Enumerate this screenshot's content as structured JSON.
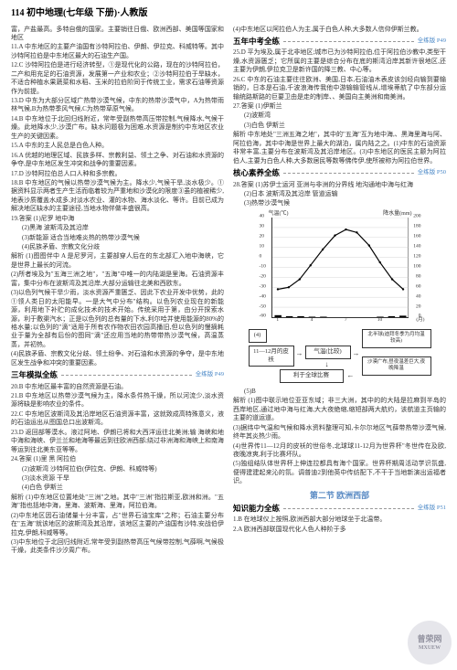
{
  "header": "114 初中地理(七年级 下册)·人教版",
  "left": {
    "p1": "富，产盐最高。多特自俄的国家。主要销往日俄、欧洲西部、美国等国家和地区",
    "i11": "11.A 中东地区的主要产油国有沙特阿拉伯、伊朗、伊拉克、科威特等。其中沙特阿拉伯是中东地区最大的石油生产国。",
    "i12": "12.C 沙特阿拉伯是进行经济转型，①是现代化的公路，现在的沙特阿拉伯，二产和用充足的石油资源，发展第一产业和农业；②沙特阿拉伯于旱缺水，不适合种植水果蔬菜和水稻、玉米的拉伯阶同于传统工业，需求石油等资源作为前提。",
    "i13": "13.D 中东为大部分区域广热带沙漠气候，中东的热带沙漠气中，A为热带雨林气候,B为热带季风气候,C为热带草原气候。",
    "i14": "14.B 中东地位于北回归线附近，常年受副热带高压带控制,气候降水,气候干燥。此地降水少,沙漠广布。缺水问题极为困难,水资源是制约中东地区农业生产的关键因素。",
    "i15": "15.A 中东的主人民总是白色人种。",
    "i16": "16.A 优越的地理区域、民族多样、宗教利益、领土之争、对石油和水资源的争夺,是中东地区发生冲突和战争的重要因素。",
    "i17": "17.D 沙特阿拉伯总人口人种和多宗教。",
    "i18": "18.B 中东地区的气候以热带沙漠气候为主。降水少,气候干旱,淡水极少。①据资料显示两者生产生活而临着较为严重地和沙漠化的限度③虽的植被稀少,地表沙质覆盖水成多,对淡水农业、灌的水物、海水淡化、等许。目前已成为解决地区缺水的主要途径,当地水物伴做丰盛很高。",
    "i19t": "19.答案 (1)尼罗 地中海",
    "i19a": "(2)黑海 波斯湾及其沿岸",
    "i19b": "(3)新能源 适合当地难炎热的热带沙漠气候",
    "i19c": "(4)民族矛盾、宗教文化分歧",
    "i19jx": "解析 (1)图图伴中 A 是尼罗河，主要部穿人后在的东北部汇入地中海峡，它是世界上最长的河流。",
    "i19d": "(2)所者埃及为\"五海三洲之地\"，\"五海\"中唯一的内陆湖是里海。石油资源丰富，集中分布在波斯湾及其沿岸,大部分运输往北美和西欧东。",
    "i19e": "(3)以色列气候干旱少雨，淡水资源严重匮乏、因此下农业开发中优势，此的 ①领人类日的太阳能早。一是大气中分布\"结构。以色列农业现在的新能源，利用地下补贮的成化技术的技术开始。传统采用于第，由分开探索水源，利于敷渠汽水；正是以色列的总有量的下水,利尔哈并使用能源的80%的格水量;以色列的\"滴\"适用于所有农作物农田农园高播旧,但以色列的慢摘耗业于量为全部有后份的图同\"滴\"还应用当地的热带带热沙漠气候，高温蒸蒸，并初热。",
    "i19f": "(4)民族矛盾、宗教文化分歧、领土纷争、对石油和水资源的争夺，是中东地区发生战争和冲突的重要因素。"
  },
  "san": {
    "title": "三年模拟全练",
    "ref": "全练版 P49",
    "i20": "20.B 中东地区最丰富的自然资源是石油。",
    "i21": "21.B 中东地区以热带沙漠气候为主，降水条件热干燥，所以河流少,淡水资源将缺是影响农业的条件。",
    "i22": "22.C 中东地区波斯湾及其沿岸地区石油资源丰富，这就致成高特殊意义，液的石油运出从图国总口出波斯湾。",
    "i23": "23.D 返回部等漠水。液过阿地、伊朗已将和大西洋运往北美洲;输 海峡和地中海和海峡、伊兰兰和地海等最远到往欧洲西部;绕过非洲海和海峡上和南海等运到往北美东亚等等。",
    "i24t": "24.答案 (1)里 黑 阿拉伯",
    "i24a": "(2)波斯湾 沙特阿拉伯(伊拉克、伊朗、科威特等)",
    "i24b": "(3)淡水资源 干旱",
    "i24c": "(4)白色 伊斯兰",
    "i24jx": "解析 (1)中东地区位置地处\"三洲\"之地。其中\"三洲\"指拉斯亚,欧洲和洲。\"五海\"指也括地中海，里海、波斯海、里海，阿拉伯海。",
    "i24d": "(2)中东地区因石油储量十分丰富，占\"世界石油宝库\"之称；石油主要分布在\"五海\"就该地区的波斯湾及其沿岸，该地区主要的产油国有沙特,安战伯伊拉克,伊朗,科威等等。",
    "i24e": "(3)中东地位于北回归线附近,常年受到副热带高压气候带控制,气薛啊,气候极干燥，此类条件沙汐周广布。"
  },
  "right_top": {
    "p1": "(4)中东地区以阿拉伯人为主,属于白色人种,大多数人信仰伊斯兰教。"
  },
  "wu": {
    "title": "五年中考全练",
    "ref": "全练版 P49",
    "i25": "25.D 平为埃及,属于北非地区;城市已为沙特阿拉伯,位于阿拉伯沙教中,类型干燥,水资源匮乏；它所属的主要是综合分布在底的斯湾沿岸其新许很地区,还主要为伊朗,伊拉克卫是新许国的降三教、中心等。",
    "i26": "26.C 中东的石油主要往往欧洲、美国,日本,石油油木表皮该剑经向输到要输销的，日本是石油,千波浪海传我他中游输输管线从,增埃蒂航了中东部分运输统路斯路的巨要卫由是走的制岸、、美国向主美洲和南美洲。",
    "i27t": "27.答案 (1)伊斯兰",
    "i27a": "(2)波斯湾",
    "i27b": "(3)白色 伊斯兰",
    "i27jx": "解析 中东地处\"三洲五海之地\"，其中的\"五海\"互为地中海,、黑海里海与阿、阿拉伯海，其中中海是世界上最大的湖泊，属内陆之之。(1)中东的石油资源非常丰富,主要分布在波斯湾及其沿岸地区。(3)中东地区的医民主颤为阿拉伯人,主要为白色人种,大多数居民等数等佛传伊,使所被称为阿拉伯世界。"
  },
  "hexin": {
    "title": "核心素养全练",
    "ref": "全练版 P50",
    "i28t": "28.答案 (1)苏伊士运河 亚洲与非洲的分界线 地沟通地中海与红海",
    "i28a": "(2)日本 波斯湾及其沿岸 管道运输",
    "i28b": "(3)热带沙漠气候"
  },
  "chart": {
    "ylabel_left": "气温(℃)",
    "ylabel_right": "降水量(mm)",
    "xlabel": "(月)",
    "y_left_ticks": [
      "40",
      "30",
      "20",
      "10",
      "0",
      "-10",
      "-20",
      "-30",
      "-40",
      "-50",
      "-60"
    ],
    "y_right_ticks": [
      "200",
      "180",
      "160",
      "140",
      "120",
      "100",
      "80",
      "60",
      "40",
      "20",
      "0"
    ],
    "x_ticks": [
      "1",
      "4",
      "7",
      "10"
    ],
    "line_points": [
      [
        0.04,
        0.72
      ],
      [
        0.12,
        0.7
      ],
      [
        0.2,
        0.62
      ],
      [
        0.28,
        0.48
      ],
      [
        0.37,
        0.32
      ],
      [
        0.46,
        0.18
      ],
      [
        0.54,
        0.12
      ],
      [
        0.62,
        0.15
      ],
      [
        0.71,
        0.28
      ],
      [
        0.79,
        0.45
      ],
      [
        0.88,
        0.62
      ],
      [
        0.96,
        0.72
      ]
    ],
    "bars": [
      0.02,
      0.01,
      0.01,
      0.005,
      0.005,
      0.0,
      0.0,
      0.0,
      0.0,
      0.005,
      0.01,
      0.015
    ],
    "line_color": "#000000",
    "bar_color": "#000000",
    "grid_color": "#bbbbbb"
  },
  "flow": {
    "box_a": "(4)",
    "box_b": "11—12月的皮袄",
    "box_c": "气温(比较)",
    "box_d": "北半球(迪拜冬季为月均温较高)",
    "box_e": "利于全球比赛",
    "box_f": "沙漠广布,昼夜温差巨大,夜晚降温",
    "i5": "(5)B",
    "jx": "解析 (1)图中联示地位亚亚东域；非三大洲，其中的的大陆是拉麻到半岛的西岸地区,通过地中海与红海,大大夜绝缩,缩短部两大航约，该航道主页输的主要的道运道。",
    "p2": "(3)据纬中气温和气候和降水资料整理可知,卡尔尔地区气薛带热带沙漠气候,终年其炎热少雨。",
    "p3": "(4)世界传11—12月的皮袄的世俗冬,北球球11-12月为世界杯\"冬世传在及欧,夜晚凉爽,利于比赛坏队。",
    "p4": "(5)独组结队体世界杯上伸连拉都具有海个国家。世界杯期周活动学识氛盛,便得建建起来沁的氛。调普迪2到他英中传纺配下,不干于当地新演出运福者识。"
  },
  "sec2": {
    "title": "第二节 欧洲西部",
    "sub": "知识能力全练",
    "ref": "全练版 P51",
    "i1": "1.B 在地球仪上按照,欧洲西部大部分地球坐于北温带。",
    "i2": "2.A 欧洲西部联国现代化人色人种阶于多"
  },
  "watermark": {
    "l1": "曾荣网",
    "l2": "MXUEW"
  }
}
